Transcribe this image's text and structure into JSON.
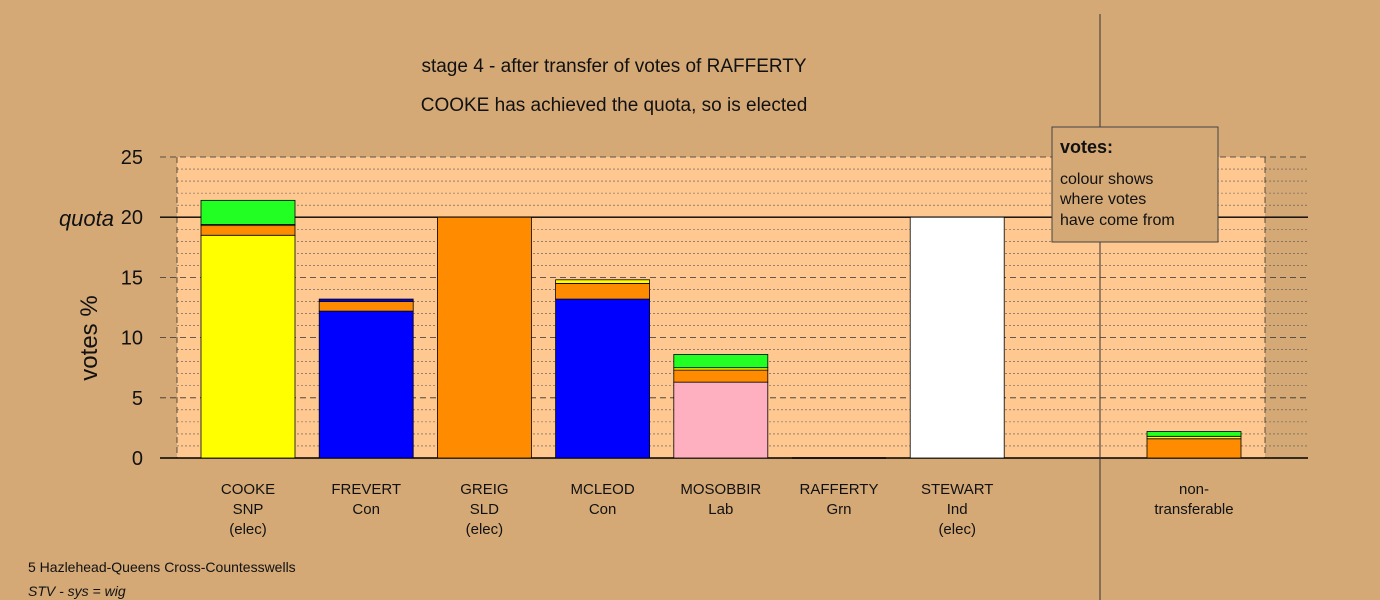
{
  "chart_data": {
    "type": "bar",
    "stacked": true,
    "title": "stage 4 - after transfer of votes of RAFFERTY",
    "subtitle": "COOKE has achieved the quota, so is elected",
    "ylabel": "votes %",
    "ylim": [
      0,
      25
    ],
    "yticks": [
      0,
      5,
      10,
      15,
      20,
      25
    ],
    "quota": 20,
    "quota_label": "quota",
    "grid": true,
    "candidates": [
      {
        "name": "COOKE",
        "party": "SNP",
        "status": "(elec)",
        "segments": [
          {
            "value": 18.5,
            "color": "#ffff00"
          },
          {
            "value": 0.8,
            "color": "#ff8c00"
          },
          {
            "value": 0.1,
            "color": "#ffff00"
          },
          {
            "value": 2.0,
            "color": "#22ff22"
          }
        ]
      },
      {
        "name": "FREVERT",
        "party": "Con",
        "status": "",
        "segments": [
          {
            "value": 12.2,
            "color": "#0000ff"
          },
          {
            "value": 0.8,
            "color": "#ff8c00"
          },
          {
            "value": 0.2,
            "color": "#0000ff"
          }
        ]
      },
      {
        "name": "GREIG",
        "party": "SLD",
        "status": "(elec)",
        "segments": [
          {
            "value": 20.0,
            "color": "#ff8c00"
          }
        ]
      },
      {
        "name": "MCLEOD",
        "party": "Con",
        "status": "",
        "segments": [
          {
            "value": 13.2,
            "color": "#0000ff"
          },
          {
            "value": 1.3,
            "color": "#ff8c00"
          },
          {
            "value": 0.3,
            "color": "#ffff00"
          }
        ]
      },
      {
        "name": "MOSOBBIR",
        "party": "Lab",
        "status": "",
        "segments": [
          {
            "value": 6.3,
            "color": "#ffb0c0"
          },
          {
            "value": 1.0,
            "color": "#ff8c00"
          },
          {
            "value": 0.2,
            "color": "#ffff00"
          },
          {
            "value": 1.1,
            "color": "#22ff22"
          }
        ]
      },
      {
        "name": "RAFFERTY",
        "party": "Grn",
        "status": "",
        "segments": []
      },
      {
        "name": "STEWART",
        "party": "Ind",
        "status": "(elec)",
        "segments": [
          {
            "value": 20.0,
            "color": "#ffffff"
          }
        ]
      }
    ],
    "nontransferable": {
      "label_line1": "non-",
      "label_line2": "transferable",
      "segments": [
        {
          "value": 1.6,
          "color": "#ff8c00"
        },
        {
          "value": 0.2,
          "color": "#ffff00"
        },
        {
          "value": 0.4,
          "color": "#22ff22"
        }
      ]
    },
    "legend": {
      "title": "votes:",
      "line1": "colour shows",
      "line2": "where votes",
      "line3": "have come from",
      "placement": "top-right"
    }
  },
  "footer": {
    "ward": "5 Hazlehead-Queens Cross-Countesswells",
    "system": "STV - sys = wig"
  },
  "colors": {
    "background": "#d4a976",
    "plot_background": "#ffc890",
    "SNP": "#ffff00",
    "Con": "#0000ff",
    "SLD": "#ff8c00",
    "Lab": "#ffb0c0",
    "Grn": "#22ff22",
    "Ind": "#ffffff"
  }
}
